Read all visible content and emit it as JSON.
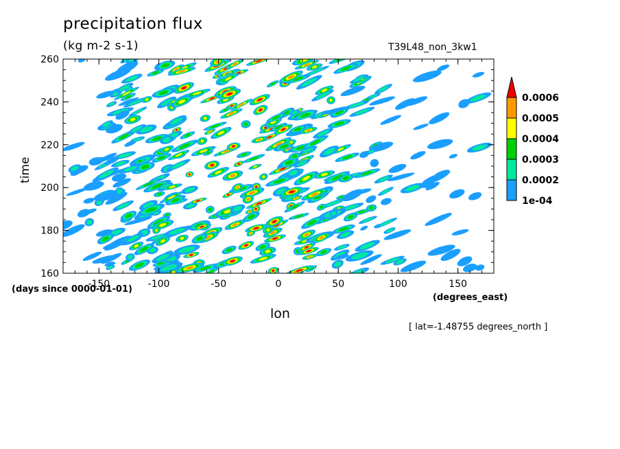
{
  "title": "precipitation flux",
  "units": "(kg m-2 s-1)",
  "run_id": "T39L48_non_3kw1",
  "y_units_note": "(days since 0000-01-01)",
  "x_units_note": "(degrees_east)",
  "xlabel": "lon",
  "ylabel": "time",
  "lat_note": "[ lat=-1.48755 degrees_north ]",
  "colors": {
    "levels": [
      "#1a9fff",
      "#00e8a0",
      "#00d000",
      "#ffff00",
      "#ff9900",
      "#ee0000"
    ],
    "line": "#000000"
  },
  "chart_data": {
    "type": "heatmap",
    "title": "precipitation flux",
    "xlabel": "lon",
    "ylabel": "time",
    "xlim": [
      -180,
      180
    ],
    "ylim": [
      160,
      260
    ],
    "x_ticks": [
      -150,
      -100,
      -50,
      0,
      50,
      100,
      150
    ],
    "x_tick_labels": [
      "-150",
      "-100",
      "-50",
      "0",
      "50",
      "100",
      "150"
    ],
    "y_ticks": [
      160,
      180,
      200,
      220,
      240,
      260
    ],
    "y_tick_labels": [
      "160",
      "180",
      "200",
      "220",
      "240",
      "260"
    ],
    "colorbar": {
      "levels": [
        0.0001,
        0.0002,
        0.0003,
        0.0004,
        0.0005,
        0.0006
      ],
      "labels": [
        "1e-04",
        "0.0002",
        "0.0003",
        "0.0004",
        "0.0005",
        "0.0006"
      ],
      "extend": "max"
    },
    "grid": false
  }
}
